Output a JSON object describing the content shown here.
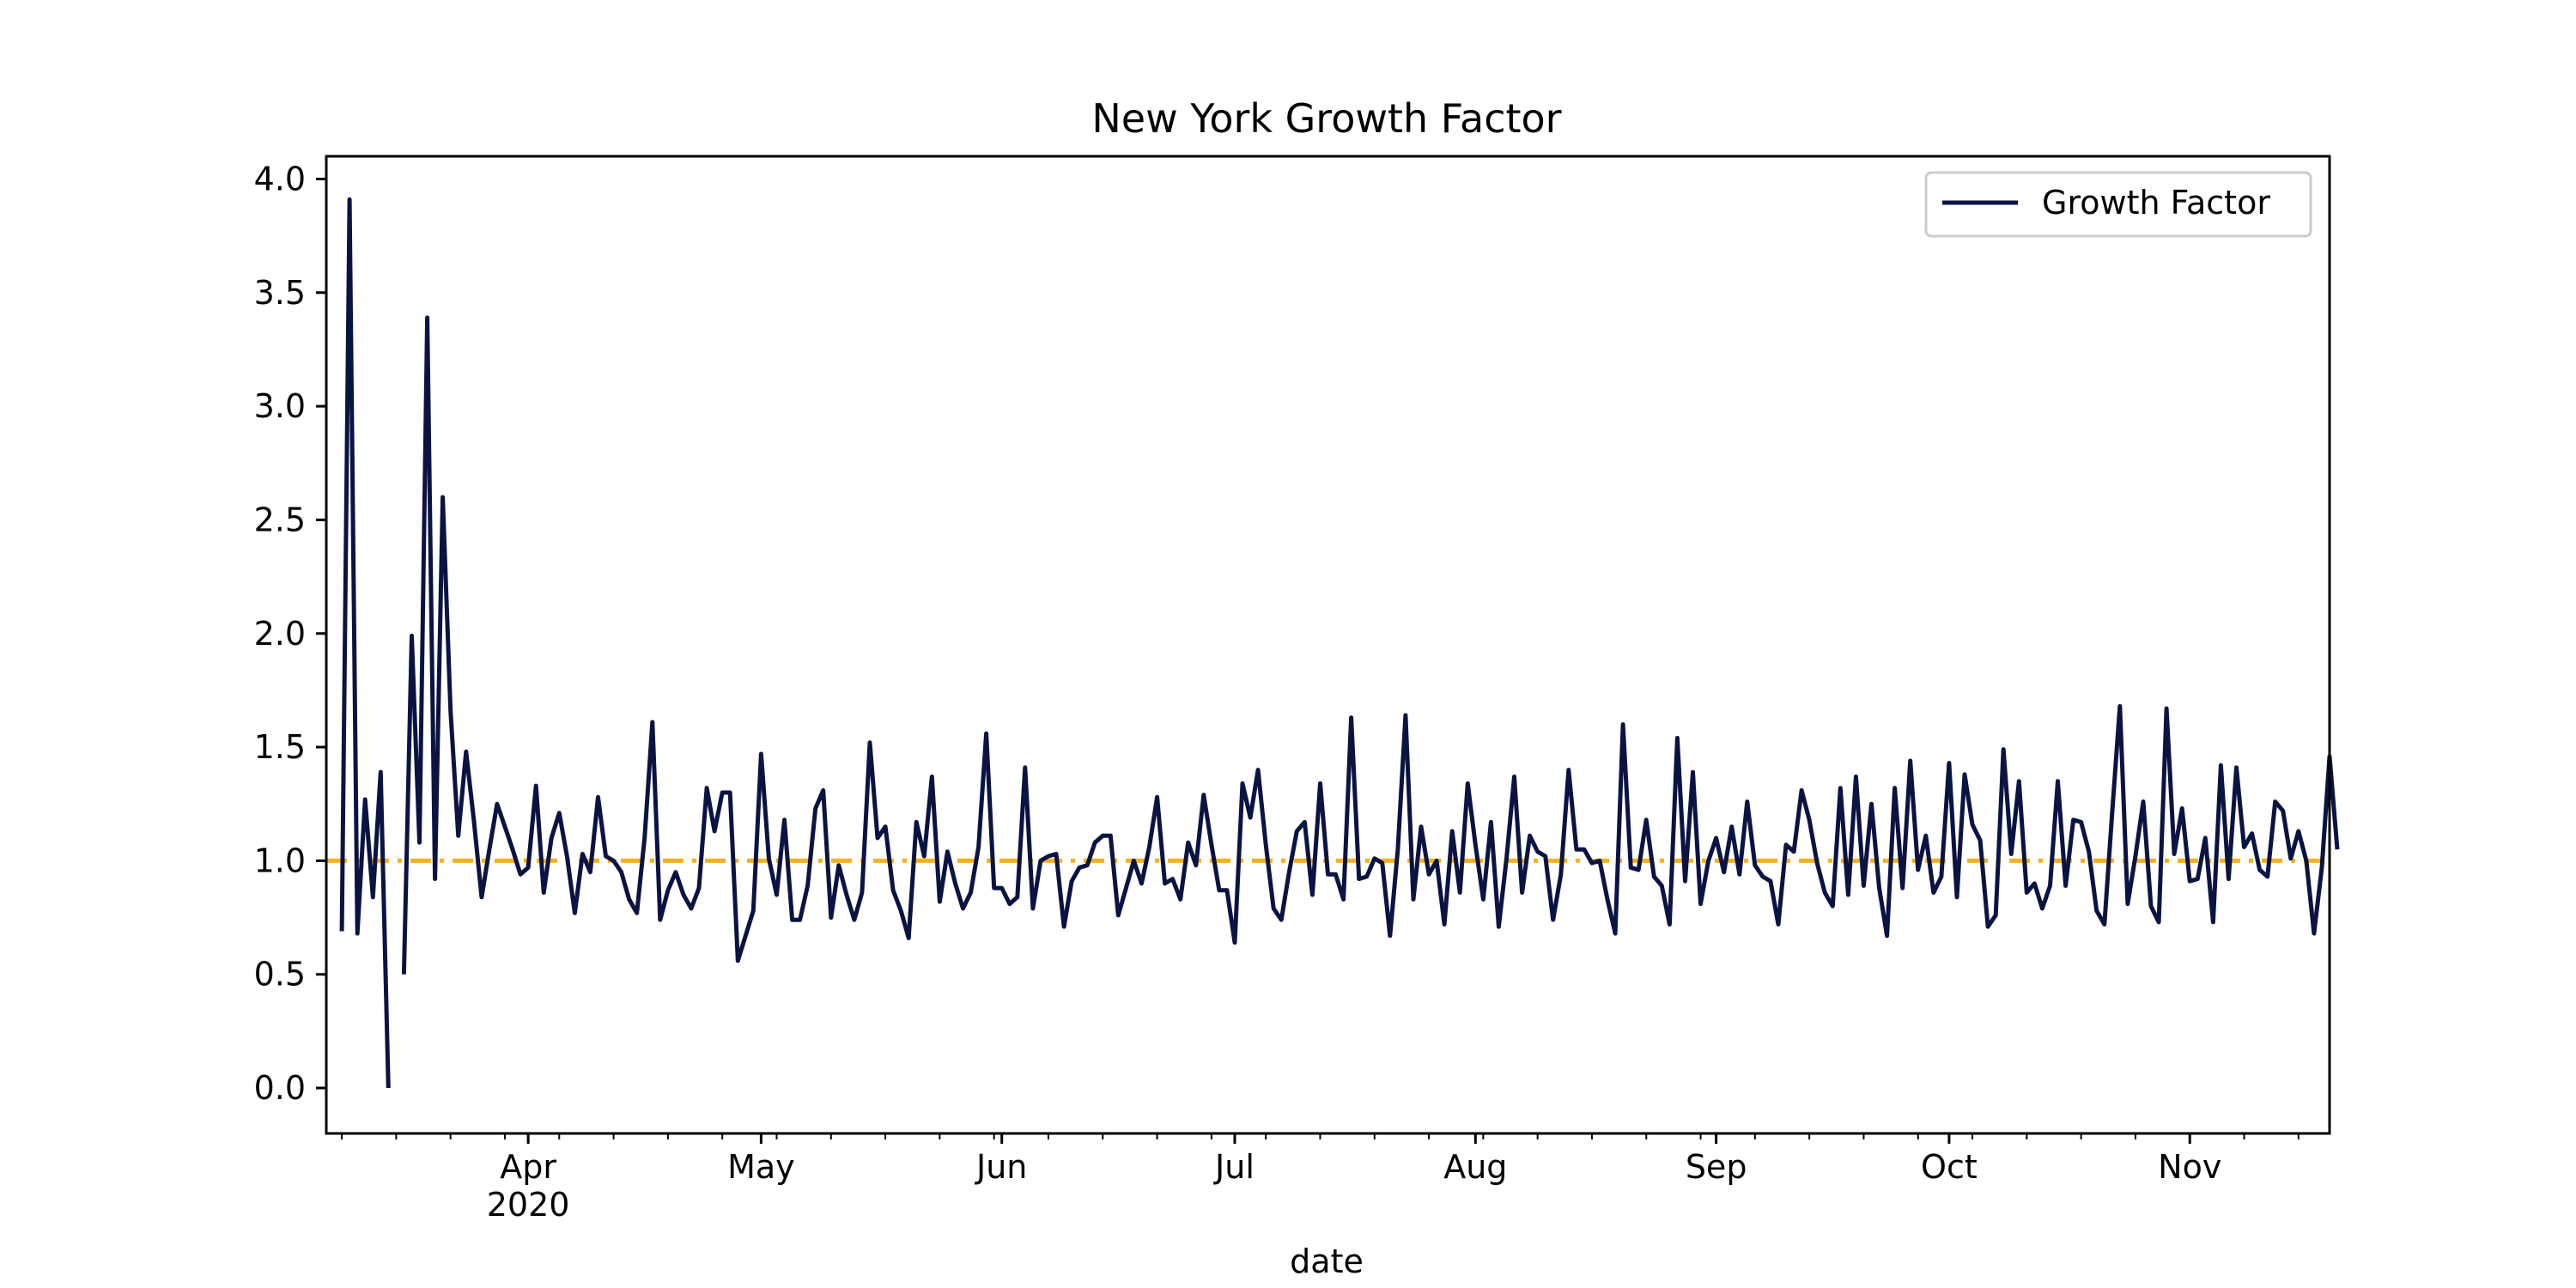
{
  "chart_data": {
    "type": "line",
    "title": "New York Growth Factor",
    "xlabel": "date",
    "ylabel": "",
    "x_start": "2020-03-06",
    "x_end": "2020-11-19",
    "ylim": [
      -0.2,
      4.1
    ],
    "yticks": [
      0.0,
      0.5,
      1.0,
      1.5,
      2.0,
      2.5,
      3.0,
      3.5,
      4.0
    ],
    "ytick_labels": [
      "0.0",
      "0.5",
      "1.0",
      "1.5",
      "2.0",
      "2.5",
      "3.0",
      "3.5",
      "4.0"
    ],
    "xticks": [
      {
        "date": "2020-04-01",
        "label": "Apr",
        "sublabel": "2020"
      },
      {
        "date": "2020-05-01",
        "label": "May",
        "sublabel": ""
      },
      {
        "date": "2020-06-01",
        "label": "Jun",
        "sublabel": ""
      },
      {
        "date": "2020-07-01",
        "label": "Jul",
        "sublabel": ""
      },
      {
        "date": "2020-08-01",
        "label": "Aug",
        "sublabel": ""
      },
      {
        "date": "2020-09-01",
        "label": "Sep",
        "sublabel": ""
      },
      {
        "date": "2020-10-01",
        "label": "Oct",
        "sublabel": ""
      },
      {
        "date": "2020-11-01",
        "label": "Nov",
        "sublabel": ""
      }
    ],
    "legend_position": "top-right",
    "reference_line": {
      "y": 1.0,
      "color": "#f5b21f",
      "style": "dashdot"
    },
    "series": [
      {
        "name": "Growth Factor",
        "color": "#0a1443",
        "start_date": "2020-03-08",
        "values": [
          0.69,
          3.91,
          0.68,
          1.27,
          0.84,
          1.39,
          0.0,
          null,
          0.5,
          1.99,
          1.08,
          3.39,
          0.92,
          2.6,
          1.66,
          1.11,
          1.48,
          1.18,
          0.84,
          1.05,
          1.25,
          1.15,
          1.05,
          0.94,
          0.97,
          1.33,
          0.86,
          1.1,
          1.21,
          1.02,
          0.77,
          1.03,
          0.95,
          1.28,
          1.02,
          1.0,
          0.95,
          0.83,
          0.77,
          1.1,
          1.61,
          0.74,
          0.87,
          0.95,
          0.85,
          0.79,
          0.88,
          1.32,
          1.13,
          1.3,
          1.3,
          0.56,
          0.67,
          0.78,
          1.47,
          1.01,
          0.85,
          1.18,
          0.74,
          0.74,
          0.89,
          1.23,
          1.31,
          0.75,
          0.98,
          0.85,
          0.74,
          0.86,
          1.52,
          1.1,
          1.15,
          0.87,
          0.78,
          0.66,
          1.17,
          1.02,
          1.37,
          0.82,
          1.04,
          0.9,
          0.79,
          0.86,
          1.06,
          1.56,
          0.88,
          0.88,
          0.81,
          0.84,
          1.41,
          0.79,
          1.0,
          1.02,
          1.03,
          0.71,
          0.91,
          0.97,
          0.98,
          1.08,
          1.11,
          1.11,
          0.76,
          0.88,
          1.0,
          0.9,
          1.06,
          1.28,
          0.9,
          0.92,
          0.83,
          1.08,
          0.98,
          1.29,
          1.07,
          0.87,
          0.87,
          0.64,
          1.34,
          1.19,
          1.4,
          1.07,
          0.79,
          0.74,
          0.95,
          1.13,
          1.17,
          0.85,
          1.34,
          0.94,
          0.94,
          0.83,
          1.63,
          0.92,
          0.93,
          1.01,
          0.99,
          0.67,
          1.05,
          1.64,
          0.83,
          1.15,
          0.94,
          1.0,
          0.72,
          1.13,
          0.86,
          1.34,
          1.07,
          0.83,
          1.17,
          0.71,
          1.01,
          1.37,
          0.86,
          1.11,
          1.04,
          1.02,
          0.74,
          0.94,
          1.4,
          1.05,
          1.05,
          0.99,
          1.0,
          0.83,
          0.68,
          1.6,
          0.97,
          0.96,
          1.18,
          0.93,
          0.89,
          0.72,
          1.54,
          0.91,
          1.39,
          0.81,
          1.0,
          1.1,
          0.95,
          1.15,
          0.94,
          1.26,
          0.98,
          0.93,
          0.91,
          0.72,
          1.07,
          1.04,
          1.31,
          1.18,
          0.99,
          0.86,
          0.8,
          1.32,
          0.85,
          1.37,
          0.89,
          1.25,
          0.88,
          0.67,
          1.32,
          0.88,
          1.44,
          0.96,
          1.11,
          0.86,
          0.93,
          1.43,
          0.84,
          1.38,
          1.16,
          1.09,
          0.71,
          0.76,
          1.49,
          1.03,
          1.35,
          0.86,
          0.9,
          0.79,
          0.89,
          1.35,
          0.89,
          1.18,
          1.17,
          1.04,
          0.78,
          0.72,
          1.21,
          1.68,
          0.81,
          1.02,
          1.26,
          0.8,
          0.73,
          1.67,
          1.03,
          1.23,
          0.91,
          0.92,
          1.1,
          0.73,
          1.42,
          0.92,
          1.41,
          1.06,
          1.12,
          0.96,
          0.93,
          1.26,
          1.22,
          1.01,
          1.13,
          1.0,
          0.68,
          0.97,
          1.46,
          1.05
        ]
      }
    ]
  }
}
